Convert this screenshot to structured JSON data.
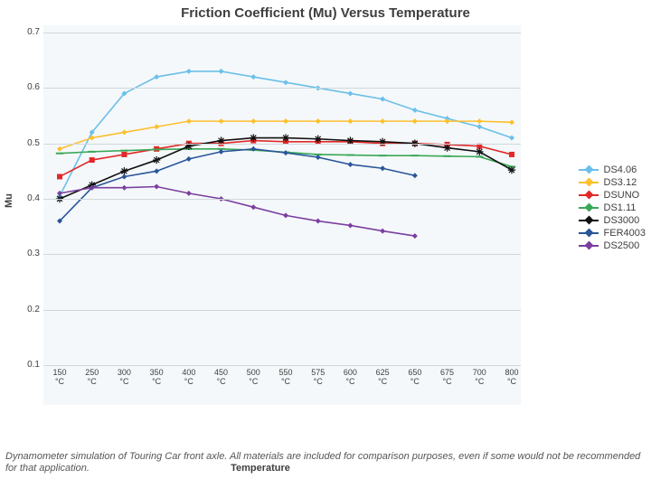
{
  "chart": {
    "type": "line",
    "title": "Friction Coefficient (Mu) Versus Temperature",
    "xlabel": "Temperature",
    "ylabel": "Mu",
    "title_fontsize": 15,
    "label_fontsize": 11,
    "tick_fontsize": 10,
    "plot_background": "#f4f8fa",
    "figure_background": "#ffffff",
    "grid_color": "#cfd8dc",
    "ylim": [
      0.1,
      0.7
    ],
    "ytick_step": 0.1,
    "x_categories": [
      "150",
      "250",
      "300",
      "350",
      "400",
      "450",
      "500",
      "550",
      "575",
      "600",
      "625",
      "650",
      "675",
      "700",
      "800"
    ],
    "x_unit": "°C",
    "line_width": 1.6,
    "marker_size": 6,
    "series": [
      {
        "name": "DS4.06",
        "color": "#6bbfe8",
        "marker": "diamond",
        "y": [
          0.405,
          0.52,
          0.59,
          0.62,
          0.63,
          0.63,
          0.62,
          0.61,
          0.6,
          0.59,
          0.58,
          0.56,
          0.545,
          0.53,
          0.51
        ]
      },
      {
        "name": "DS3.12",
        "color": "#fdbf2d",
        "marker": "diamond",
        "y": [
          0.49,
          0.51,
          0.52,
          0.53,
          0.54,
          0.54,
          0.54,
          0.54,
          0.54,
          0.54,
          0.54,
          0.54,
          0.54,
          0.54,
          0.538
        ]
      },
      {
        "name": "DSUNO",
        "color": "#e32828",
        "marker": "square",
        "y": [
          0.44,
          0.47,
          0.48,
          0.49,
          0.5,
          0.5,
          0.505,
          0.503,
          0.503,
          0.503,
          0.5,
          0.5,
          0.498,
          0.495,
          0.48
        ]
      },
      {
        "name": "DS1.11",
        "color": "#3aa757",
        "marker": "dash",
        "y": [
          0.482,
          0.485,
          0.487,
          0.489,
          0.49,
          0.49,
          0.488,
          0.484,
          0.48,
          0.479,
          0.478,
          0.478,
          0.477,
          0.476,
          0.458
        ]
      },
      {
        "name": "DS3000",
        "color": "#111111",
        "marker": "star",
        "y": [
          0.4,
          0.425,
          0.45,
          0.47,
          0.495,
          0.505,
          0.51,
          0.51,
          0.508,
          0.505,
          0.503,
          0.5,
          0.492,
          0.485,
          0.452
        ]
      },
      {
        "name": "FER4003",
        "color": "#2a5599",
        "marker": "diamond",
        "y": [
          0.36,
          0.42,
          0.44,
          0.45,
          0.472,
          0.485,
          0.49,
          0.483,
          0.475,
          0.462,
          0.455,
          0.442,
          null,
          null,
          null
        ]
      },
      {
        "name": "DS2500",
        "color": "#7b3fa0",
        "marker": "diamond",
        "y": [
          0.41,
          0.42,
          0.42,
          0.422,
          0.41,
          0.4,
          0.385,
          0.37,
          0.36,
          0.352,
          0.342,
          0.333,
          null,
          null,
          null
        ]
      }
    ],
    "caption": "Dynamometer simulation of Touring Car front axle. All materials are included for comparison purposes, even if some would not be recommended for that application."
  }
}
